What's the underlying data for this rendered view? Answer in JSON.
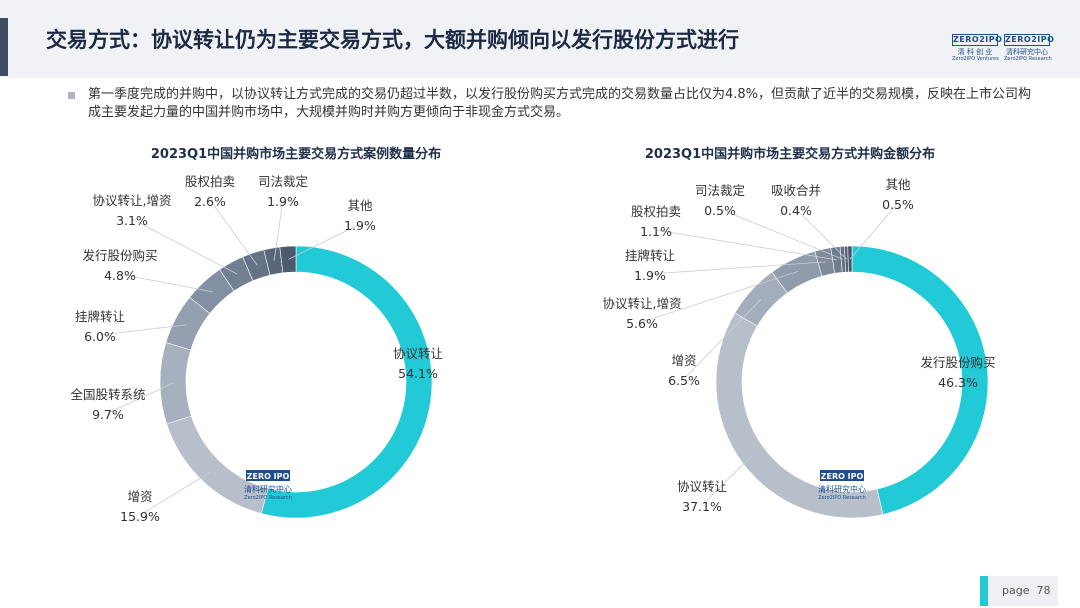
{
  "header": {
    "title": "交易方式：协议转让仍为主要交易方式，大额并购倾向以发行股份方式进行",
    "logos": [
      {
        "top": "ZERO2IPO",
        "mid": "清 科 创 业",
        "bot": "Zero2IPO Ventures"
      },
      {
        "top": "ZERO2IPO",
        "mid": "清科研究中心",
        "bot": "Zero2IPO Research"
      }
    ]
  },
  "summary": {
    "text": "第一季度完成的并购中，以协议转让方式完成的交易仍超过半数，以发行股份购买方式完成的交易数量占比仅为4.8%，但贡献了近半的交易规模，反映在上市公司构成主要发起力量的中国并购市场中，大规模并购时并购方更倾向于非现金方式交易。"
  },
  "watermark": {
    "top": "ZERO IPO",
    "mid": "清科研究中心",
    "bot": "Zero2IPO Research"
  },
  "footer": {
    "page_label": "page",
    "page_number": "78"
  },
  "chart_data": [
    {
      "type": "pie",
      "title": "2023Q1中国并购市场主要交易方式案例数量分布",
      "unit": "%",
      "slices": [
        {
          "label": "协议转让",
          "value": 54.1,
          "value_text": "54.1%",
          "color": "#22c9d6"
        },
        {
          "label": "增资",
          "value": 15.9,
          "value_text": "15.9%",
          "color": "#b7bfcb"
        },
        {
          "label": "全国股转系统",
          "value": 9.7,
          "value_text": "9.7%",
          "color": "#a6b0be"
        },
        {
          "label": "挂牌转让",
          "value": 6.0,
          "value_text": "6.0%",
          "color": "#949fb0"
        },
        {
          "label": "发行股份购买",
          "value": 4.8,
          "value_text": "4.8%",
          "color": "#838fa2"
        },
        {
          "label": "协议转让,增资",
          "value": 3.1,
          "value_text": "3.1%",
          "color": "#737f93"
        },
        {
          "label": "股权拍卖",
          "value": 2.6,
          "value_text": "2.6%",
          "color": "#667287"
        },
        {
          "label": "司法裁定",
          "value": 1.9,
          "value_text": "1.9%",
          "color": "#5a667b"
        },
        {
          "label": "其他",
          "value": 1.9,
          "value_text": "1.9%",
          "color": "#4d596e"
        }
      ]
    },
    {
      "type": "pie",
      "title": "2023Q1中国并购市场主要交易方式并购金额分布",
      "unit": "%",
      "slices": [
        {
          "label": "发行股份购买",
          "value": 46.3,
          "value_text": "46.3%",
          "color": "#22c9d6"
        },
        {
          "label": "协议转让",
          "value": 37.1,
          "value_text": "37.1%",
          "color": "#b7bfcb"
        },
        {
          "label": "增资",
          "value": 6.5,
          "value_text": "6.5%",
          "color": "#a3adbb"
        },
        {
          "label": "协议转让,增资",
          "value": 5.6,
          "value_text": "5.6%",
          "color": "#909bac"
        },
        {
          "label": "挂牌转让",
          "value": 1.9,
          "value_text": "1.9%",
          "color": "#7f8a9d"
        },
        {
          "label": "股权拍卖",
          "value": 1.1,
          "value_text": "1.1%",
          "color": "#6f7b8f"
        },
        {
          "label": "司法裁定",
          "value": 0.5,
          "value_text": "0.5%",
          "color": "#626e82"
        },
        {
          "label": "吸收合并",
          "value": 0.4,
          "value_text": "0.4%",
          "color": "#566276"
        },
        {
          "label": "其他",
          "value": 0.5,
          "value_text": "0.5%",
          "color": "#4a566a"
        }
      ]
    }
  ]
}
